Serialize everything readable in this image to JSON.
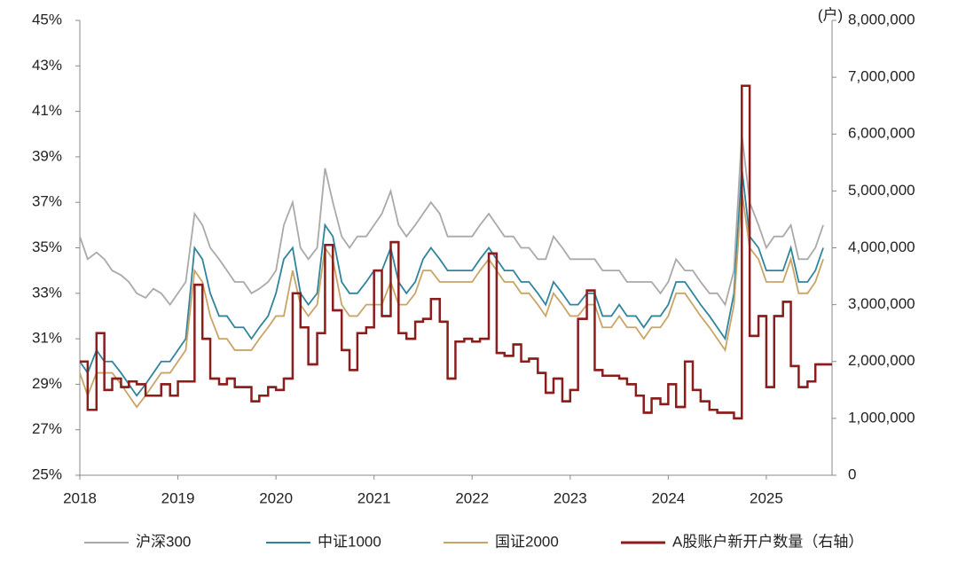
{
  "chart_data": {
    "type": "line",
    "y2_unit_label": "(户)",
    "x": [
      2018,
      2018.08,
      2018.17,
      2018.25,
      2018.33,
      2018.42,
      2018.5,
      2018.58,
      2018.67,
      2018.75,
      2018.83,
      2018.92,
      2019,
      2019.08,
      2019.17,
      2019.25,
      2019.33,
      2019.42,
      2019.5,
      2019.58,
      2019.67,
      2019.75,
      2019.83,
      2019.92,
      2020,
      2020.08,
      2020.17,
      2020.25,
      2020.33,
      2020.42,
      2020.5,
      2020.58,
      2020.67,
      2020.75,
      2020.83,
      2020.92,
      2021,
      2021.08,
      2021.17,
      2021.25,
      2021.33,
      2021.42,
      2021.5,
      2021.58,
      2021.67,
      2021.75,
      2021.83,
      2021.92,
      2022,
      2022.08,
      2022.17,
      2022.25,
      2022.33,
      2022.42,
      2022.5,
      2022.58,
      2022.67,
      2022.75,
      2022.83,
      2022.92,
      2023,
      2023.08,
      2023.17,
      2023.25,
      2023.33,
      2023.42,
      2023.5,
      2023.58,
      2023.67,
      2023.75,
      2023.83,
      2023.92,
      2024,
      2024.08,
      2024.17,
      2024.25,
      2024.33,
      2024.42,
      2024.5,
      2024.58,
      2024.67,
      2024.75,
      2024.83,
      2024.92,
      2025,
      2025.08,
      2025.17,
      2025.25,
      2025.33,
      2025.42,
      2025.5,
      2025.58
    ],
    "xlim": [
      2018,
      2025.67
    ],
    "xticks": [
      2018,
      2019,
      2020,
      2021,
      2022,
      2023,
      2024,
      2025
    ],
    "ylim": [
      25,
      45
    ],
    "yticks": [
      {
        "value": 25,
        "label": "25%"
      },
      {
        "value": 27,
        "label": "27%"
      },
      {
        "value": 29,
        "label": "29%"
      },
      {
        "value": 31,
        "label": "31%"
      },
      {
        "value": 33,
        "label": "33%"
      },
      {
        "value": 35,
        "label": "35%"
      },
      {
        "value": 37,
        "label": "37%"
      },
      {
        "value": 39,
        "label": "39%"
      },
      {
        "value": 41,
        "label": "41%"
      },
      {
        "value": 43,
        "label": "43%"
      },
      {
        "value": 45,
        "label": "45%"
      }
    ],
    "y2lim": [
      0,
      8000000
    ],
    "y2ticks": [
      0,
      {
        "value": 1000000,
        "label": "1,000,000"
      },
      {
        "value": 2000000,
        "label": "2,000,000"
      },
      {
        "value": 3000000,
        "label": "3,000,000"
      },
      {
        "value": 4000000,
        "label": "4,000,000"
      },
      {
        "value": 5000000,
        "label": "5,000,000"
      },
      {
        "value": 6000000,
        "label": "6,000,000"
      },
      {
        "value": 7000000,
        "label": "7,000,000"
      },
      {
        "value": 8000000,
        "label": "8,000,000"
      }
    ],
    "legend": "bottom",
    "series": [
      {
        "name": "沪深300",
        "color": "#a9a9a9",
        "values": [
          35.5,
          34.5,
          34.8,
          34.5,
          34,
          33.8,
          33.5,
          33,
          32.8,
          33.2,
          33,
          32.5,
          33,
          33.5,
          36.5,
          36,
          35,
          34.5,
          34,
          33.5,
          33.5,
          33,
          33.2,
          33.5,
          34,
          36,
          37,
          35,
          34.5,
          35,
          38.5,
          37,
          35.5,
          35,
          35.5,
          35.5,
          36,
          36.5,
          37.5,
          36,
          35.5,
          36,
          36.5,
          37,
          36.5,
          35.5,
          35.5,
          35.5,
          35.5,
          36,
          36.5,
          36,
          35.5,
          35.5,
          35,
          35,
          34.5,
          34.5,
          35.5,
          35,
          34.5,
          34.5,
          34.5,
          34.5,
          34,
          34,
          34,
          33.5,
          33.5,
          33.5,
          33.5,
          33,
          33.5,
          34.5,
          34,
          34,
          33.5,
          33,
          33,
          32.5,
          34,
          40,
          37,
          36,
          35,
          35.5,
          35.5,
          36,
          34.5,
          34.5,
          35,
          36
        ]
      },
      {
        "name": "中证1000",
        "color": "#2f849c",
        "values": [
          30,
          29.5,
          30.5,
          30,
          30,
          29.5,
          29,
          28.5,
          29,
          29.5,
          30,
          30,
          30.5,
          31,
          35,
          34.5,
          33,
          32,
          32,
          31.5,
          31.5,
          31,
          31.5,
          32,
          33,
          34.5,
          35,
          33,
          32.5,
          33,
          36,
          35.5,
          33.5,
          33,
          33,
          33.5,
          34,
          34,
          35,
          33.5,
          33,
          33.5,
          34.5,
          35,
          34.5,
          34,
          34,
          34,
          34,
          34.5,
          35,
          34.5,
          34,
          34,
          33.5,
          33.5,
          33,
          32.5,
          33.5,
          33,
          32.5,
          32.5,
          33,
          33,
          32,
          32,
          32.5,
          32,
          32,
          31.5,
          32,
          32,
          32.5,
          33.5,
          33.5,
          33,
          32.5,
          32,
          31.5,
          31,
          33,
          38.5,
          35.5,
          35,
          34,
          34,
          34,
          35,
          33.5,
          33.5,
          34,
          35
        ]
      },
      {
        "name": "国证2000",
        "color": "#c9a466",
        "values": [
          29.5,
          28.5,
          29.5,
          29.5,
          29.5,
          29,
          28.5,
          28,
          28.5,
          29,
          29.5,
          29.5,
          30,
          30.5,
          34,
          33.5,
          32,
          31,
          31,
          30.5,
          30.5,
          30.5,
          31,
          31.5,
          32,
          32,
          34,
          32.5,
          32,
          32.5,
          35,
          34.5,
          32.5,
          32,
          32,
          32.5,
          32.5,
          32.5,
          33.5,
          32.5,
          32.5,
          33,
          34,
          34,
          33.5,
          33.5,
          33.5,
          33.5,
          33.5,
          34,
          34.5,
          34,
          33.5,
          33.5,
          33,
          33,
          32.5,
          32,
          33,
          32.5,
          32,
          32,
          32.5,
          32.5,
          31.5,
          31.5,
          32,
          31.5,
          31.5,
          31,
          31.5,
          31.5,
          32,
          33,
          33,
          32.5,
          32,
          31.5,
          31,
          30.5,
          32.5,
          37.5,
          35,
          34.5,
          33.5,
          33.5,
          33.5,
          34.5,
          33,
          33,
          33.5,
          34.5
        ]
      },
      {
        "name": "A股账户新开户数量（右轴）",
        "color": "#8b1d1d",
        "axis": "y2",
        "step": true,
        "values": [
          2000000,
          1150000,
          2500000,
          1500000,
          1700000,
          1550000,
          1650000,
          1600000,
          1400000,
          1400000,
          1600000,
          1400000,
          1650000,
          1650000,
          3350000,
          2400000,
          1700000,
          1600000,
          1700000,
          1550000,
          1550000,
          1300000,
          1400000,
          1550000,
          1500000,
          1700000,
          3200000,
          2600000,
          1950000,
          2500000,
          4050000,
          2900000,
          2200000,
          1850000,
          2500000,
          2600000,
          3600000,
          2800000,
          4100000,
          2500000,
          2400000,
          2700000,
          2750000,
          3100000,
          2700000,
          1700000,
          2350000,
          2400000,
          2350000,
          2400000,
          3900000,
          2150000,
          2100000,
          2300000,
          2000000,
          2050000,
          1800000,
          1450000,
          1700000,
          1300000,
          1500000,
          2750000,
          3250000,
          1850000,
          1750000,
          1750000,
          1700000,
          1600000,
          1400000,
          1100000,
          1350000,
          1250000,
          1600000,
          1200000,
          2000000,
          1500000,
          1300000,
          1150000,
          1100000,
          1100000,
          1000000,
          6850000,
          2450000,
          2800000,
          1550000,
          2800000,
          3050000,
          1920000,
          1550000,
          1650000,
          1950000,
          1950000
        ]
      }
    ]
  }
}
